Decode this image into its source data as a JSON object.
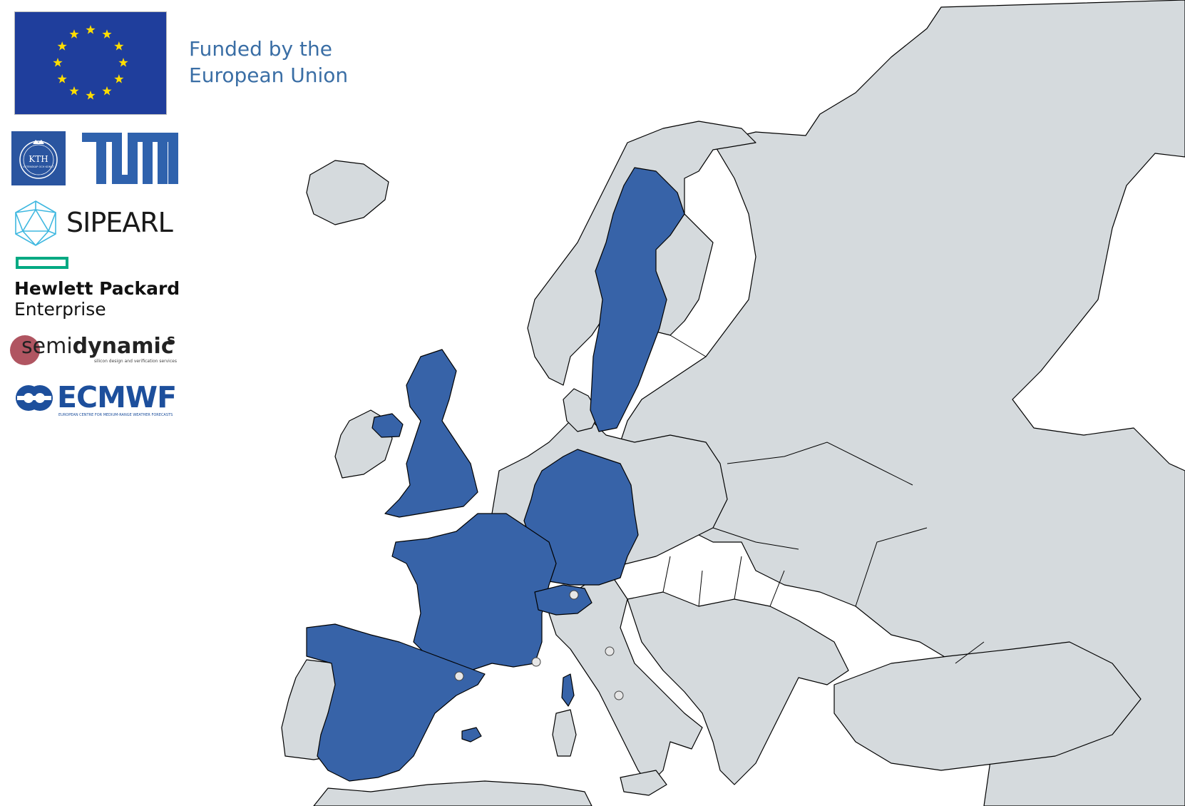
{
  "logos": {
    "eu_text_1": "Funded by the",
    "eu_text_2": "European Union",
    "kth": "KTH",
    "kth_motto": "VETENSKAP OCH KONST",
    "sipearl": "SIPEARL",
    "hpe_line1": "Hewlett Packard",
    "hpe_line2": "Enterprise",
    "semidynamics_s": "s",
    "semidynamics_emi": "emi",
    "semidynamics_dynamic": "dynamic",
    "semidynamics_sup": "s",
    "semidynamics_tagline": "silicon design and verification services",
    "ecmwf": "ECMWF",
    "ecmwf_tagline": "EUROPEAN CENTRE FOR MEDIUM-RANGE WEATHER FORECASTS"
  },
  "map": {
    "highlighted_countries": [
      "Sweden",
      "United Kingdom",
      "France",
      "Germany",
      "Spain",
      "Switzerland"
    ],
    "colors": {
      "highlight": "#3763a8",
      "land": "#d5dadd",
      "sea": "#ffffff",
      "border": "#000000"
    },
    "city_markers": [
      "Bologna",
      "Barcelona",
      "Marseille",
      "Rome",
      "Zurich"
    ]
  }
}
